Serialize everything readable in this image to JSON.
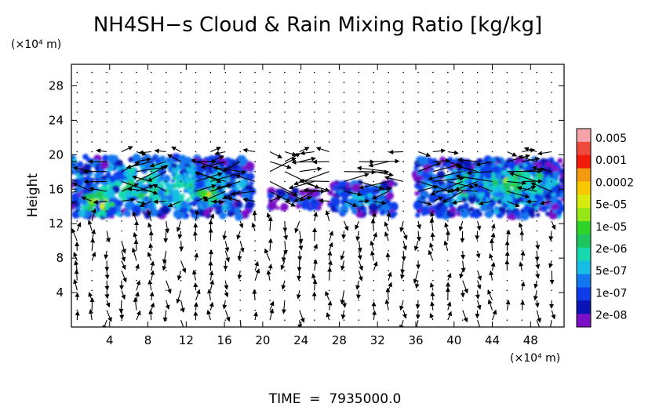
{
  "chart_data": {
    "type": "heatmap",
    "title": "NH4SH−s Cloud & Rain Mixing Ratio [kg/kg]",
    "ylabel": "Height",
    "x_unit": "(×10⁴ m)",
    "y_unit": "(×10⁴ m)",
    "footer": "TIME  =  7935000.0",
    "xlim": [
      0,
      51.5
    ],
    "ylim": [
      0,
      30.5
    ],
    "xticks": [
      4,
      8,
      12,
      16,
      20,
      24,
      28,
      32,
      36,
      40,
      44,
      48
    ],
    "yticks": [
      4,
      8,
      12,
      16,
      20,
      24,
      28
    ],
    "grid": false,
    "colorbar": {
      "placement": "right",
      "labels": [
        "0.005",
        "0.001",
        "0.0002",
        "5e-05",
        "1e-05",
        "2e-06",
        "5e-07",
        "1e-07",
        "2e-08"
      ],
      "colors": [
        "#f5a3a8",
        "#ef4a3c",
        "#f21a0a",
        "#f49a10",
        "#f7c800",
        "#d8ea10",
        "#96e61a",
        "#2ed42a",
        "#1ec45e",
        "#16d9b0",
        "#17bde6",
        "#1378f0",
        "#0e3cea",
        "#0a14b4",
        "#7b10c8"
      ]
    },
    "cloud_cells": [
      {
        "x": [
          0,
          19
        ],
        "y": [
          12.8,
          19.8
        ],
        "level": 0.55
      },
      {
        "x": [
          1,
          5
        ],
        "y": [
          13.0,
          16.0
        ],
        "level": 0.95
      },
      {
        "x": [
          13,
          16
        ],
        "y": [
          14.0,
          17.0
        ],
        "level": 0.9
      },
      {
        "x": [
          20.5,
          26
        ],
        "y": [
          13.8,
          15.8
        ],
        "level": 0.3
      },
      {
        "x": [
          27,
          34
        ],
        "y": [
          13.0,
          16.8
        ],
        "level": 0.4
      },
      {
        "x": [
          36,
          51.5
        ],
        "y": [
          12.8,
          19.5
        ],
        "level": 0.55
      },
      {
        "x": [
          41,
          51.5
        ],
        "y": [
          14.5,
          19.0
        ],
        "level": 0.65
      }
    ],
    "wind_vectors": "quiver field overlay"
  }
}
